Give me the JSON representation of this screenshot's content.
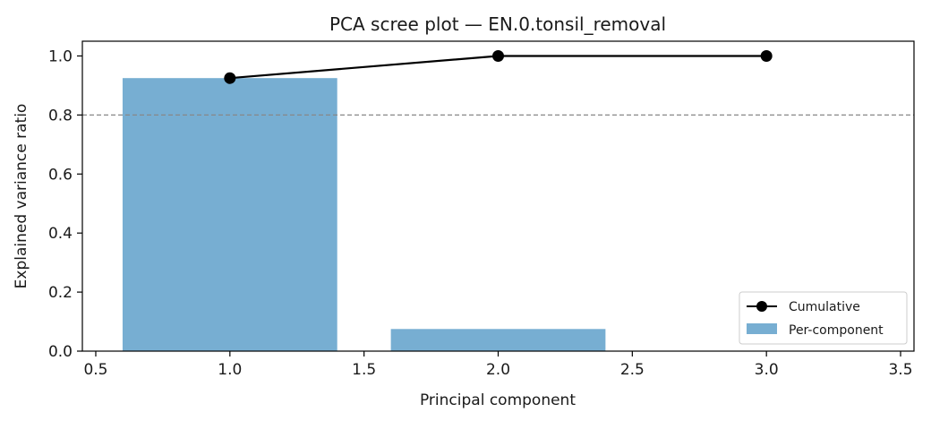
{
  "chart_data": {
    "type": "bar",
    "title": "PCA scree plot — EN.0.tonsil_removal",
    "xlabel": "Principal component",
    "ylabel": "Explained variance ratio",
    "xlim": [
      0.45,
      3.55
    ],
    "ylim": [
      0.0,
      1.05
    ],
    "xticks": [
      0.5,
      1.0,
      1.5,
      2.0,
      2.5,
      3.0,
      3.5
    ],
    "xtick_labels": [
      "0.5",
      "1.0",
      "1.5",
      "2.0",
      "2.5",
      "3.0",
      "3.5"
    ],
    "yticks": [
      0.0,
      0.2,
      0.4,
      0.6,
      0.8,
      1.0
    ],
    "ytick_labels": [
      "0.0",
      "0.2",
      "0.4",
      "0.6",
      "0.8",
      "1.0"
    ],
    "x": [
      1,
      2,
      3
    ],
    "bar_width": 0.8,
    "series": [
      {
        "name": "Per-component",
        "kind": "bar",
        "color": "#77aed2",
        "values": [
          0.925,
          0.075,
          0.0
        ]
      },
      {
        "name": "Cumulative",
        "kind": "line",
        "color": "#000000",
        "marker": "circle",
        "values": [
          0.925,
          1.0,
          1.0
        ]
      }
    ],
    "threshold_line": {
      "value": 0.8,
      "style": "dashed",
      "color": "#888888"
    },
    "legend": {
      "position": "lower-right",
      "entries": [
        "Cumulative",
        "Per-component"
      ]
    },
    "grid": false
  }
}
